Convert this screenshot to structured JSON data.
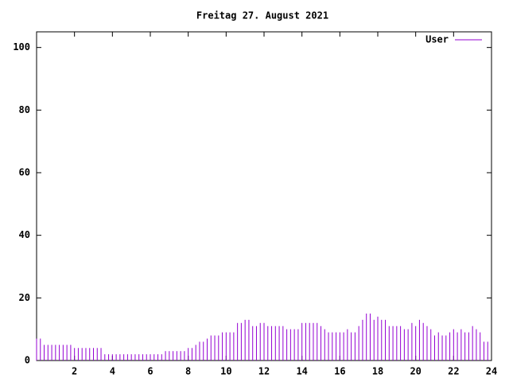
{
  "chart_data": {
    "type": "impulse",
    "title": "Freitag 27. August 2021",
    "x": [
      0,
      0.2,
      0.4,
      0.6,
      0.8,
      1,
      1.2,
      1.4,
      1.6,
      1.8,
      2,
      2.2,
      2.4,
      2.6,
      2.8,
      3,
      3.2,
      3.4,
      3.6,
      3.8,
      4,
      4.2,
      4.4,
      4.6,
      4.8,
      5,
      5.2,
      5.4,
      5.6,
      5.8,
      6,
      6.2,
      6.4,
      6.6,
      6.8,
      7,
      7.2,
      7.4,
      7.6,
      7.8,
      8,
      8.2,
      8.4,
      8.6,
      8.8,
      9,
      9.2,
      9.4,
      9.6,
      9.8,
      10,
      10.2,
      10.4,
      10.6,
      10.8,
      11,
      11.2,
      11.4,
      11.6,
      11.8,
      12,
      12.2,
      12.4,
      12.6,
      12.8,
      13,
      13.2,
      13.4,
      13.6,
      13.8,
      14,
      14.2,
      14.4,
      14.6,
      14.8,
      15,
      15.2,
      15.4,
      15.6,
      15.8,
      16,
      16.2,
      16.4,
      16.6,
      16.8,
      17,
      17.2,
      17.4,
      17.6,
      17.8,
      18,
      18.2,
      18.4,
      18.6,
      18.8,
      19,
      19.2,
      19.4,
      19.6,
      19.8,
      20,
      20.2,
      20.4,
      20.6,
      20.8,
      21,
      21.2,
      21.4,
      21.6,
      21.8,
      22,
      22.2,
      22.4,
      22.6,
      22.8,
      23,
      23.2,
      23.4,
      23.6,
      23.8
    ],
    "series": [
      {
        "name": "User",
        "color": "#9400d3",
        "values": [
          7,
          7,
          5,
          5,
          5,
          5,
          5,
          5,
          5,
          5,
          4,
          4,
          4,
          4,
          4,
          4,
          4,
          4,
          2,
          2,
          2,
          2,
          2,
          2,
          2,
          2,
          2,
          2,
          2,
          2,
          2,
          2,
          2,
          2,
          3,
          3,
          3,
          3,
          3,
          3,
          4,
          4,
          5,
          6,
          6,
          7,
          8,
          8,
          8,
          9,
          9,
          9,
          9,
          12,
          12,
          13,
          13,
          11,
          11,
          12,
          12,
          11,
          11,
          11,
          11,
          11,
          10,
          10,
          10,
          10,
          12,
          12,
          12,
          12,
          12,
          11,
          10,
          9,
          9,
          9,
          9,
          9,
          10,
          9,
          9,
          11,
          13,
          15,
          15,
          13,
          14,
          13,
          13,
          11,
          11,
          11,
          11,
          10,
          10,
          12,
          11,
          13,
          12,
          11,
          10,
          8,
          9,
          8,
          8,
          9,
          10,
          9,
          10,
          9,
          9,
          11,
          10,
          9,
          6,
          6
        ]
      }
    ],
    "xlim": [
      0,
      24
    ],
    "xticks": [
      2,
      4,
      6,
      8,
      10,
      12,
      14,
      16,
      18,
      20,
      22,
      24
    ],
    "ylim": [
      0,
      105
    ],
    "yticks": [
      0,
      20,
      40,
      60,
      80,
      100
    ],
    "legend": "top-right"
  }
}
